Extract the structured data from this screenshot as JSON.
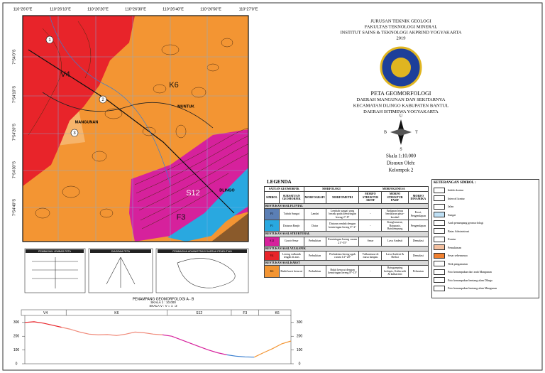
{
  "map": {
    "top_ticks": [
      "110°26'0\"E",
      "110°26'10\"E",
      "110°26'20\"E",
      "110°26'30\"E",
      "110°26'40\"E",
      "110°26'50\"E",
      "110°27'0\"E"
    ],
    "left_ticks": [
      "7°54'0\"S",
      "7°54'10\"S",
      "7°54'20\"S",
      "7°54'30\"S",
      "7°54'40\"S"
    ],
    "units": [
      "V4",
      "K6",
      "S12",
      "F3"
    ],
    "places": [
      "MUNTUK",
      "MANGUNAN",
      "DLINGO"
    ],
    "points": [
      "1",
      "2",
      "3"
    ]
  },
  "header": {
    "lines": [
      "JURUSAN TEKNIK GEOLOGI",
      "FAKULTAS TEKNOLOGI MINERAL",
      "INSTITUT SAINS & TEKNOLOGI AKPRIND YOGYAKARTA",
      "2019"
    ]
  },
  "title": {
    "lines": [
      "PETA GEOMORFOLOGI",
      "DAERAH MANGUNAN DAN SEKITARNYA",
      "KECAMATAN DLINGO KABUPATEN BANTUL",
      "DAERAH ISTIMEWA YOGYAKARTA"
    ]
  },
  "compass": {
    "n": "U",
    "w": "B",
    "e": "T",
    "s": "S"
  },
  "credits": {
    "scale": "Skala 1:10.000",
    "by": "Disusun Oleh:",
    "team": "Kelompok 2"
  },
  "legend": {
    "title": "LEGENDA",
    "head": [
      "SATUAN GEOMORFIK",
      "MORFOLOGI",
      "MORFOGENESA"
    ],
    "subhead": [
      "SIMBOL",
      "SUBSATUAN GEOMORFIK",
      "MORFOGRAFI",
      "MORFOMETRI",
      "MORFO STRUKTUR AKTIF",
      "MORFO STRUKTUR PASIF",
      "MORFO DINAMIKA"
    ],
    "groups": [
      {
        "name": "BENTUKAN ASAL FLUVIAL",
        "rows": [
          {
            "color": "#5b7fb5",
            "cells": [
              "F3",
              "Tubuh Sungai",
              "Landai",
              "Lembah sungai yang berada pada kemiringan lereng 2°-8°",
              "-",
              "Endapan lepas berukuran pasir-kerakal",
              "Erosi, Pengendapan"
            ]
          },
          {
            "color": "#29a8e0",
            "cells": [
              "F1",
              "Dataran Banjir",
              "Datar",
              "Dataran rendah dengan kemiringan lereng 0°-2°",
              "-",
              "Konglomerat, Batupasir, Batulempung",
              "Pengendapan"
            ]
          }
        ]
      },
      {
        "name": "BENTUKAN ASAL STRUKTURAL",
        "rows": [
          {
            "color": "#d6219c",
            "cells": [
              "S12",
              "Gawir Sesar",
              "Perbukitan",
              "Kemiringan lereng curam 21°-55°",
              "Sesar",
              "Lava Andesit",
              "Denudasi"
            ]
          }
        ]
      },
      {
        "name": "BENTUKAN ASAL VULKANIK",
        "rows": [
          {
            "color": "#e8242a",
            "cells": [
              "V4",
              "Lereng vulkanik tengah di atas",
              "Perbukitan",
              "Perbukitan lereng agak curam 14°-20°",
              "Vulkanisme di masa lampau",
              "Lava Andesit & Breksi",
              "Denudasi"
            ]
          }
        ]
      },
      {
        "name": "BENTUKAN ASAL KARST",
        "rows": [
          {
            "color": "#f39533",
            "cells": [
              "K6",
              "Bukit karst kerucut",
              "Perbukitan",
              "Bukit kerucut dengan kemiringan lereng 8°-13°",
              "-",
              "Batugamping berlapis, Kalsirudit & kalkarenit",
              "Pelarutan"
            ]
          }
        ]
      }
    ]
  },
  "symbols": {
    "title": "KETERANGAN SIMBOL :",
    "items": [
      "Indeks kontur",
      "Interval kontur",
      "Jalan",
      "Sungai",
      "Arah penampang geomorfologi",
      "Batas Administrasi",
      "Kontur",
      "Pemukiman",
      "Sesar sebenarnya",
      "Titik pengamatan",
      "Foto kenampakan dari arah Mangunan",
      "Foto kenampakan bentang alam Dlingo",
      "Foto kenampakan bentang alam Mangunan"
    ]
  },
  "insets": [
    "PEMBAGIAN LEMBAR PETA",
    "DIAGRAM PETA",
    "PEMBAGIAN ADMINISTRASI DAERAH PENELITIAN"
  ],
  "profile": {
    "title": "PENAMPANG GEOMORFOLOGI A - B",
    "scale": "SKALA 1 : 10.000",
    "vscale": "SKALA V : V = 1 : 2",
    "ylim": [
      0,
      330
    ],
    "yticks": [
      0,
      100,
      200,
      300
    ],
    "series": [
      {
        "name": "V4",
        "color": "#e8242a",
        "values": [
          300,
          305,
          295,
          280,
          265
        ]
      },
      {
        "name": "K6",
        "color": "#f08a7a",
        "values": [
          250,
          230,
          215,
          210,
          212,
          205,
          215,
          230,
          225,
          215,
          210
        ]
      },
      {
        "name": "S12",
        "color": "#d6219c",
        "values": [
          200,
          175,
          150,
          125,
          100,
          80,
          65
        ]
      },
      {
        "name": "F3",
        "color": "#3a7fd0",
        "values": [
          55,
          50,
          48
        ]
      },
      {
        "name": "K6",
        "color": "#f39533",
        "values": [
          80,
          110,
          145,
          165
        ]
      }
    ]
  }
}
